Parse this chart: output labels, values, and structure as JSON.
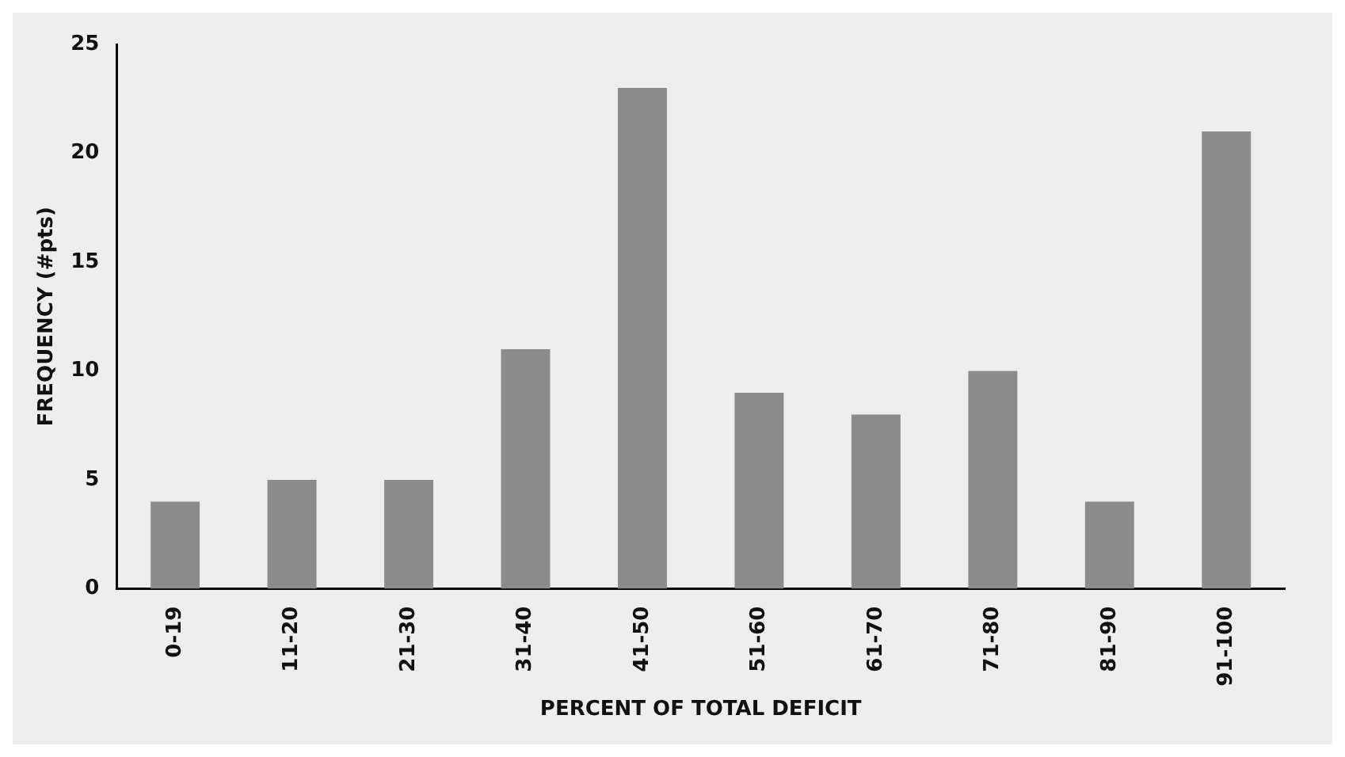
{
  "chart_data": {
    "type": "bar",
    "xlabel": "PERCENT OF TOTAL DEFICIT",
    "ylabel": "FREQUENCY (#pts)",
    "categories": [
      "0-19",
      "11-20",
      "21-30",
      "31-40",
      "41-50",
      "51-60",
      "61-70",
      "71-80",
      "81-90",
      "91-100"
    ],
    "values": [
      4,
      5,
      5,
      11,
      23,
      9,
      8,
      10,
      4,
      21
    ],
    "color": "#8c8c8c",
    "ylim": [
      0,
      25
    ],
    "yticks": [
      0,
      5,
      10,
      15,
      20,
      25
    ],
    "grid": false,
    "legend": false
  }
}
